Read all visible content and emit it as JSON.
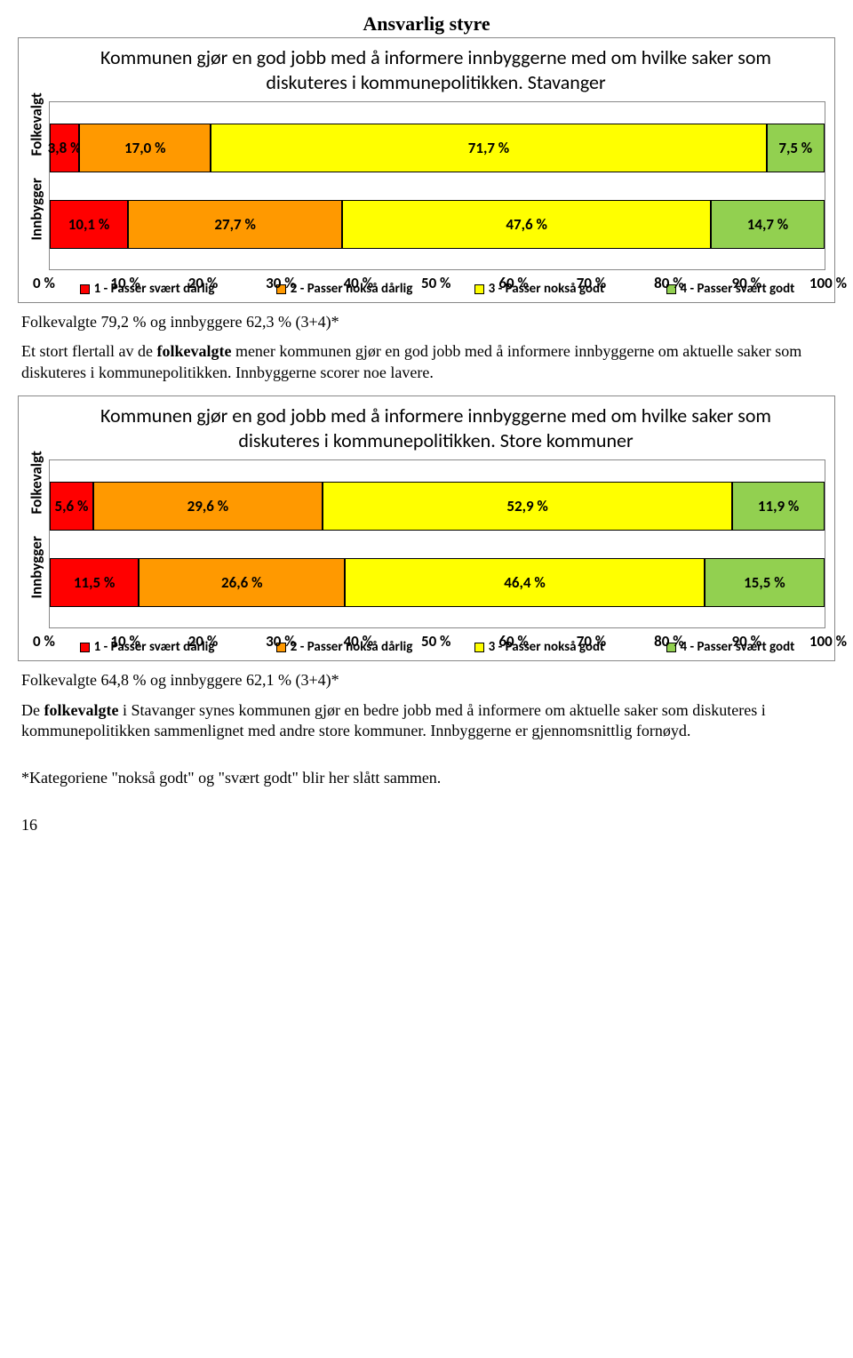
{
  "section_title": "Ansvarlig styre",
  "colors": {
    "seg1": "#ff0000",
    "seg2": "#ff9900",
    "seg3": "#ffff00",
    "seg4": "#92d050",
    "border": "#888888"
  },
  "chart1": {
    "title": "Kommunen gjør en god jobb med å informere innbyggerne med om hvilke saker som diskuteres i kommunepolitikken. Stavanger",
    "ylabels": [
      "Folkevalgt",
      "Innbygger"
    ],
    "rows": [
      {
        "values": [
          3.8,
          17.0,
          71.7,
          7.5
        ],
        "labels": [
          "3,8 %",
          "17,0 %",
          "71,7 %",
          "7,5 %"
        ]
      },
      {
        "values": [
          10.1,
          27.7,
          47.6,
          14.7
        ],
        "labels": [
          "10,1 %",
          "27,7 %",
          "47,6 %",
          "14,7 %"
        ]
      }
    ],
    "xticks": [
      "0 %",
      "10 %",
      "20 %",
      "30 %",
      "40 %",
      "50 %",
      "60 %",
      "70 %",
      "80 %",
      "90 %",
      "100 %"
    ],
    "legend": [
      "1 - Passer svært dårlig",
      "2 - Passer nokså dårlig",
      "3 - Passer nokså godt",
      "4 - Passer svært godt"
    ]
  },
  "summary1": "Folkevalgte 79,2 % og innbyggere 62,3 % (3+4)*",
  "para1": "Et stort flertall av de folkevalgte mener kommunen gjør en god jobb med å informere innbyggerne om aktuelle saker som diskuteres i kommunepolitikken. Innbyggerne scorer noe lavere.",
  "chart2": {
    "title": "Kommunen gjør en god jobb med å informere innbyggerne med om hvilke saker som diskuteres i kommunepolitikken. Store kommuner",
    "ylabels": [
      "Folkevalgt",
      "Innbygger"
    ],
    "rows": [
      {
        "values": [
          5.6,
          29.6,
          52.9,
          11.9
        ],
        "labels": [
          "5,6 %",
          "29,6 %",
          "52,9 %",
          "11,9 %"
        ]
      },
      {
        "values": [
          11.5,
          26.6,
          46.4,
          15.5
        ],
        "labels": [
          "11,5 %",
          "26,6 %",
          "46,4 %",
          "15,5 %"
        ]
      }
    ],
    "xticks": [
      "0 %",
      "10 %",
      "20 %",
      "30 %",
      "40 %",
      "50 %",
      "60 %",
      "70 %",
      "80 %",
      "90 %",
      "100 %"
    ],
    "legend": [
      "1 - Passer svært dårlig",
      "2 - Passer nokså dårlig",
      "3 - Passer nokså godt",
      "4 - Passer svært godt"
    ]
  },
  "summary2": "Folkevalgte 64,8 % og innbyggere 62,1 % (3+4)*",
  "para2": "De folkevalgte i Stavanger synes kommunen gjør en bedre jobb med å informere om aktuelle saker som diskuteres i kommunepolitikken sammenlignet med andre store kommuner. Innbyggerne er gjennomsnittlig fornøyd.",
  "footnote": "*Kategoriene \"nokså godt\" og \"svært godt\" blir her slått sammen.",
  "page_number": "16"
}
